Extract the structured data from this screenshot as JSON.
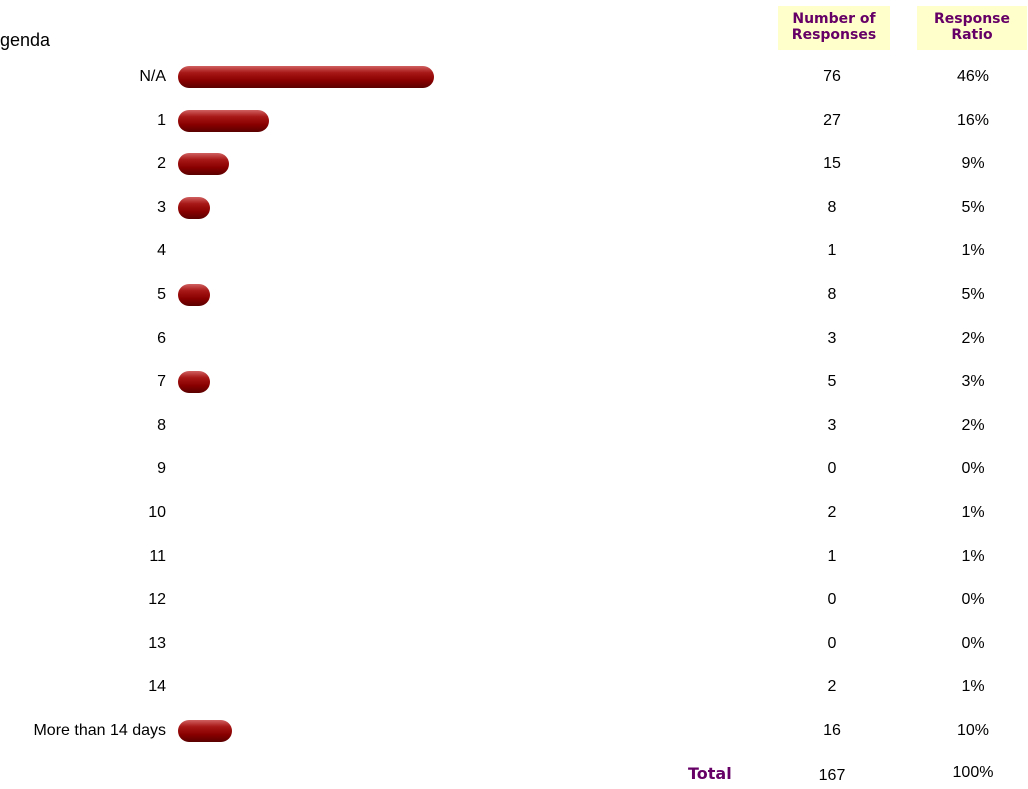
{
  "title": "genda",
  "headers": {
    "responses_line1": "Number of",
    "responses_line2": "Responses",
    "ratio_line1": "Response",
    "ratio_line2": "Ratio"
  },
  "colors": {
    "bar": "#8a0000",
    "header_bg": "#ffffcc",
    "header_text": "#660066"
  },
  "chart_data": {
    "type": "bar",
    "orientation": "horizontal",
    "categories": [
      "N/A",
      "1",
      "2",
      "3",
      "4",
      "5",
      "6",
      "7",
      "8",
      "9",
      "10",
      "11",
      "12",
      "13",
      "14",
      "More than 14 days"
    ],
    "values": [
      76,
      27,
      15,
      8,
      1,
      8,
      3,
      5,
      3,
      0,
      2,
      1,
      0,
      0,
      2,
      16
    ],
    "ratios": [
      "46%",
      "16%",
      "9%",
      "5%",
      "1%",
      "5%",
      "2%",
      "3%",
      "2%",
      "0%",
      "1%",
      "1%",
      "0%",
      "0%",
      "1%",
      "10%"
    ],
    "total_label": "Total",
    "total_count": "167",
    "total_ratio": "100%"
  }
}
